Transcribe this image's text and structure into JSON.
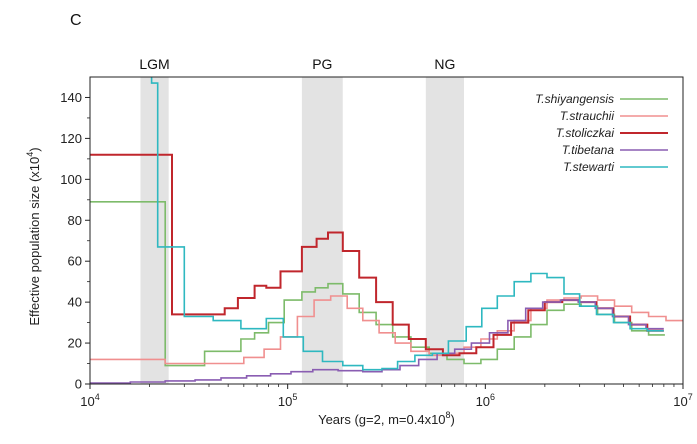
{
  "panel_label": "C",
  "chart_data": {
    "type": "line",
    "step": true,
    "title": "",
    "xlabel": "Years (g=2, m=0.4x10",
    "xlabel_sup": "8",
    "xlabel_suffix": ")",
    "ylabel": "Effective population size (x10",
    "ylabel_sup": "4",
    "ylabel_suffix": ")",
    "x_scale": "log",
    "xlim": [
      10000,
      10000000
    ],
    "ylim": [
      0,
      150
    ],
    "x_ticks": [
      {
        "value": 10000,
        "base": "10",
        "exp": "4"
      },
      {
        "value": 100000,
        "base": "10",
        "exp": "5"
      },
      {
        "value": 1000000,
        "base": "10",
        "exp": "6"
      },
      {
        "value": 10000000,
        "base": "10",
        "exp": "7"
      }
    ],
    "y_ticks": [
      0,
      20,
      40,
      60,
      80,
      100,
      120,
      140
    ],
    "grid": false,
    "legend_position": "top-right",
    "shaded_regions": [
      {
        "label": "LGM",
        "x0": 18000,
        "x1": 25000
      },
      {
        "label": "PG",
        "x0": 118000,
        "x1": 190000
      },
      {
        "label": "NG",
        "x0": 500000,
        "x1": 780000
      }
    ],
    "series": [
      {
        "name": "T.shiyangensis",
        "color": "#7dbb6a",
        "points": [
          [
            10000,
            89
          ],
          [
            24000,
            89
          ],
          [
            24000,
            9
          ],
          [
            38000,
            9
          ],
          [
            38000,
            16
          ],
          [
            58000,
            16
          ],
          [
            58000,
            22
          ],
          [
            68000,
            22
          ],
          [
            68000,
            25
          ],
          [
            80000,
            25
          ],
          [
            80000,
            30
          ],
          [
            96000,
            30
          ],
          [
            96000,
            41
          ],
          [
            118000,
            41
          ],
          [
            118000,
            45
          ],
          [
            138000,
            45
          ],
          [
            138000,
            47
          ],
          [
            160000,
            47
          ],
          [
            160000,
            49
          ],
          [
            190000,
            49
          ],
          [
            190000,
            44
          ],
          [
            230000,
            44
          ],
          [
            230000,
            35
          ],
          [
            280000,
            35
          ],
          [
            280000,
            29
          ],
          [
            340000,
            29
          ],
          [
            340000,
            23
          ],
          [
            420000,
            23
          ],
          [
            420000,
            18
          ],
          [
            520000,
            18
          ],
          [
            520000,
            15
          ],
          [
            640000,
            15
          ],
          [
            640000,
            12
          ],
          [
            780000,
            12
          ],
          [
            780000,
            10
          ],
          [
            950000,
            10
          ],
          [
            950000,
            12
          ],
          [
            1150000,
            12
          ],
          [
            1150000,
            17
          ],
          [
            1400000,
            17
          ],
          [
            1400000,
            23
          ],
          [
            1700000,
            23
          ],
          [
            1700000,
            29
          ],
          [
            2050000,
            29
          ],
          [
            2050000,
            36
          ],
          [
            2500000,
            36
          ],
          [
            2500000,
            39
          ],
          [
            3050000,
            39
          ],
          [
            3050000,
            38
          ],
          [
            3700000,
            38
          ],
          [
            3700000,
            34
          ],
          [
            4500000,
            34
          ],
          [
            4500000,
            30
          ],
          [
            5500000,
            30
          ],
          [
            5500000,
            26
          ],
          [
            6700000,
            26
          ],
          [
            6700000,
            24
          ],
          [
            8100000,
            24
          ]
        ]
      },
      {
        "name": "T.strauchii",
        "color": "#f08f8f",
        "points": [
          [
            10000,
            12
          ],
          [
            24000,
            12
          ],
          [
            24000,
            10
          ],
          [
            60000,
            10
          ],
          [
            60000,
            13
          ],
          [
            76000,
            13
          ],
          [
            76000,
            17
          ],
          [
            92000,
            17
          ],
          [
            92000,
            23
          ],
          [
            112000,
            23
          ],
          [
            112000,
            33
          ],
          [
            136000,
            33
          ],
          [
            136000,
            41
          ],
          [
            165000,
            41
          ],
          [
            165000,
            43
          ],
          [
            200000,
            43
          ],
          [
            200000,
            37
          ],
          [
            240000,
            37
          ],
          [
            240000,
            31
          ],
          [
            290000,
            31
          ],
          [
            290000,
            25
          ],
          [
            350000,
            25
          ],
          [
            350000,
            20
          ],
          [
            420000,
            20
          ],
          [
            420000,
            16
          ],
          [
            520000,
            16
          ],
          [
            520000,
            14
          ],
          [
            640000,
            14
          ],
          [
            640000,
            15
          ],
          [
            780000,
            15
          ],
          [
            780000,
            18
          ],
          [
            950000,
            18
          ],
          [
            950000,
            22
          ],
          [
            1150000,
            22
          ],
          [
            1150000,
            26
          ],
          [
            1400000,
            26
          ],
          [
            1400000,
            31
          ],
          [
            1700000,
            31
          ],
          [
            1700000,
            37
          ],
          [
            2050000,
            37
          ],
          [
            2050000,
            41
          ],
          [
            2500000,
            41
          ],
          [
            2500000,
            42
          ],
          [
            3050000,
            42
          ],
          [
            3050000,
            43
          ],
          [
            3700000,
            43
          ],
          [
            3700000,
            41
          ],
          [
            4500000,
            41
          ],
          [
            4500000,
            38
          ],
          [
            5500000,
            38
          ],
          [
            5500000,
            35
          ],
          [
            6700000,
            35
          ],
          [
            6700000,
            33
          ],
          [
            8200000,
            33
          ],
          [
            8200000,
            31
          ],
          [
            10000000,
            31
          ]
        ]
      },
      {
        "name": "T.stoliczkai",
        "color": "#c0262c",
        "points": [
          [
            10000,
            112
          ],
          [
            26000,
            112
          ],
          [
            26000,
            34
          ],
          [
            48000,
            34
          ],
          [
            48000,
            37
          ],
          [
            56000,
            37
          ],
          [
            56000,
            42
          ],
          [
            68000,
            42
          ],
          [
            68000,
            48
          ],
          [
            78000,
            48
          ],
          [
            78000,
            47
          ],
          [
            92000,
            47
          ],
          [
            92000,
            55
          ],
          [
            118000,
            55
          ],
          [
            118000,
            67
          ],
          [
            140000,
            67
          ],
          [
            140000,
            71
          ],
          [
            160000,
            71
          ],
          [
            160000,
            74
          ],
          [
            190000,
            74
          ],
          [
            190000,
            65
          ],
          [
            230000,
            65
          ],
          [
            230000,
            52
          ],
          [
            280000,
            52
          ],
          [
            280000,
            40
          ],
          [
            340000,
            40
          ],
          [
            340000,
            29
          ],
          [
            410000,
            29
          ],
          [
            410000,
            22
          ],
          [
            500000,
            22
          ],
          [
            500000,
            17
          ],
          [
            610000,
            17
          ],
          [
            610000,
            14
          ],
          [
            740000,
            14
          ],
          [
            740000,
            15
          ],
          [
            900000,
            15
          ],
          [
            900000,
            18
          ],
          [
            1100000,
            18
          ],
          [
            1100000,
            24
          ],
          [
            1350000,
            24
          ],
          [
            1350000,
            30
          ],
          [
            1650000,
            30
          ],
          [
            1650000,
            36
          ],
          [
            2000000,
            36
          ],
          [
            2000000,
            40
          ],
          [
            2450000,
            40
          ],
          [
            2450000,
            41
          ],
          [
            3000000,
            41
          ],
          [
            3000000,
            40
          ],
          [
            3650000,
            40
          ],
          [
            3650000,
            37
          ],
          [
            4450000,
            37
          ],
          [
            4450000,
            33
          ],
          [
            5400000,
            33
          ],
          [
            5400000,
            29
          ],
          [
            6600000,
            29
          ],
          [
            6600000,
            26
          ],
          [
            8000000,
            26
          ]
        ]
      },
      {
        "name": "T.tibetana",
        "color": "#8a5db2",
        "points": [
          [
            10000,
            0.5
          ],
          [
            16000,
            0.5
          ],
          [
            16000,
            1
          ],
          [
            24000,
            1
          ],
          [
            24000,
            1.5
          ],
          [
            34000,
            1.5
          ],
          [
            34000,
            2
          ],
          [
            46000,
            2
          ],
          [
            46000,
            3
          ],
          [
            62000,
            3
          ],
          [
            62000,
            4
          ],
          [
            82000,
            4
          ],
          [
            82000,
            5
          ],
          [
            104000,
            5
          ],
          [
            104000,
            6
          ],
          [
            134000,
            6
          ],
          [
            134000,
            7
          ],
          [
            180000,
            7
          ],
          [
            180000,
            6.5
          ],
          [
            240000,
            6.5
          ],
          [
            240000,
            6
          ],
          [
            300000,
            6
          ],
          [
            300000,
            7
          ],
          [
            370000,
            7
          ],
          [
            370000,
            9
          ],
          [
            460000,
            9
          ],
          [
            460000,
            12
          ],
          [
            570000,
            12
          ],
          [
            570000,
            15
          ],
          [
            700000,
            15
          ],
          [
            700000,
            17
          ],
          [
            850000,
            17
          ],
          [
            850000,
            20
          ],
          [
            1050000,
            20
          ],
          [
            1050000,
            25
          ],
          [
            1300000,
            25
          ],
          [
            1300000,
            31
          ],
          [
            1600000,
            31
          ],
          [
            1600000,
            37
          ],
          [
            1950000,
            37
          ],
          [
            1950000,
            40
          ],
          [
            2400000,
            40
          ],
          [
            2400000,
            41
          ],
          [
            2950000,
            41
          ],
          [
            2950000,
            40
          ],
          [
            3600000,
            40
          ],
          [
            3600000,
            37
          ],
          [
            4400000,
            37
          ],
          [
            4400000,
            33
          ],
          [
            5300000,
            33
          ],
          [
            5300000,
            29
          ],
          [
            6500000,
            29
          ],
          [
            6500000,
            27
          ],
          [
            8000000,
            27
          ]
        ]
      },
      {
        "name": "T.stewarti",
        "color": "#2eb8c0",
        "points": [
          [
            20500,
            150
          ],
          [
            20500,
            147
          ],
          [
            22000,
            147
          ],
          [
            22000,
            67
          ],
          [
            30000,
            67
          ],
          [
            30000,
            33
          ],
          [
            42000,
            33
          ],
          [
            42000,
            31
          ],
          [
            58000,
            31
          ],
          [
            58000,
            27
          ],
          [
            78000,
            27
          ],
          [
            78000,
            32
          ],
          [
            95000,
            32
          ],
          [
            95000,
            23
          ],
          [
            120000,
            23
          ],
          [
            120000,
            16
          ],
          [
            150000,
            16
          ],
          [
            150000,
            11
          ],
          [
            190000,
            11
          ],
          [
            190000,
            9
          ],
          [
            240000,
            9
          ],
          [
            240000,
            7
          ],
          [
            300000,
            7
          ],
          [
            300000,
            7.5
          ],
          [
            360000,
            7.5
          ],
          [
            360000,
            11
          ],
          [
            440000,
            11
          ],
          [
            440000,
            14
          ],
          [
            540000,
            14
          ],
          [
            540000,
            15
          ],
          [
            650000,
            15
          ],
          [
            650000,
            21
          ],
          [
            800000,
            21
          ],
          [
            800000,
            28
          ],
          [
            960000,
            28
          ],
          [
            960000,
            37
          ],
          [
            1150000,
            37
          ],
          [
            1150000,
            43
          ],
          [
            1400000,
            43
          ],
          [
            1400000,
            50
          ],
          [
            1700000,
            50
          ],
          [
            1700000,
            54
          ],
          [
            2050000,
            54
          ],
          [
            2050000,
            52
          ],
          [
            2500000,
            52
          ],
          [
            2500000,
            44
          ],
          [
            3000000,
            44
          ],
          [
            3000000,
            38
          ],
          [
            3650000,
            38
          ],
          [
            3650000,
            34
          ],
          [
            4450000,
            34
          ],
          [
            4450000,
            30
          ],
          [
            5400000,
            30
          ],
          [
            5400000,
            27
          ],
          [
            6600000,
            27
          ],
          [
            6600000,
            26
          ],
          [
            8000000,
            26
          ]
        ]
      }
    ]
  }
}
